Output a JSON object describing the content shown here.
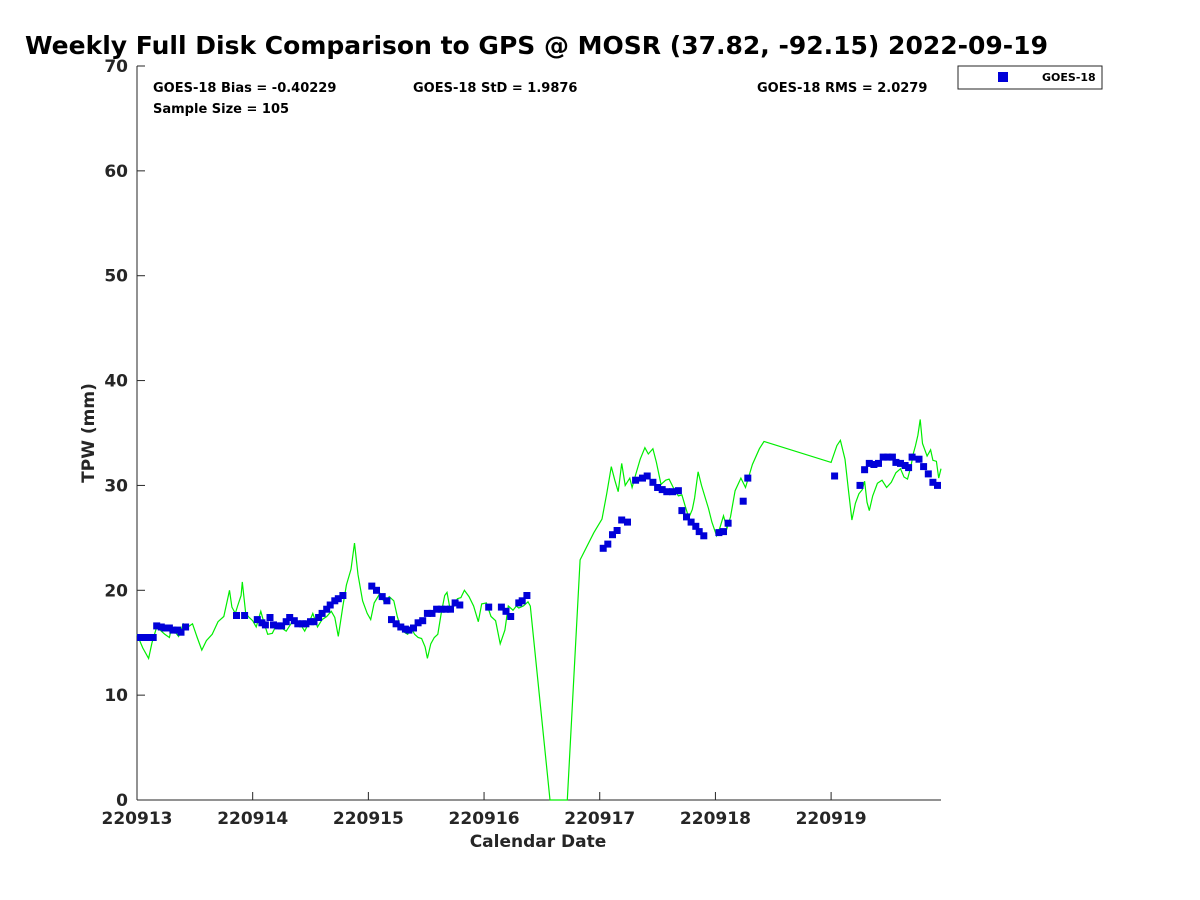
{
  "chart_data": {
    "type": "scatter",
    "title": "Weekly Full Disk Comparison to GPS @ MOSR (37.82, -92.15) 2022-09-19",
    "xlabel": "Calendar Date",
    "ylabel": "TPW (mm)",
    "xlim": [
      0,
      6.95
    ],
    "ylim": [
      0,
      70
    ],
    "x_tick_values": [
      0,
      1,
      2,
      3,
      4,
      5,
      6
    ],
    "x_tick_labels": [
      "220913",
      "220914",
      "220915",
      "220916",
      "220917",
      "220918",
      "220919"
    ],
    "y_tick_values": [
      0,
      10,
      20,
      30,
      40,
      50,
      60,
      70
    ],
    "y_tick_labels": [
      "0",
      "10",
      "20",
      "30",
      "40",
      "50",
      "60",
      "70"
    ],
    "grid": false,
    "legend_placement": "top-right",
    "stats": {
      "bias": "GOES-18 Bias = -0.40229",
      "std": "GOES-18 StD = 1.9876",
      "rms": "GOES-18 RMS = 2.0279",
      "sample_size": "Sample Size = 105"
    },
    "series": [
      {
        "name": "GOES-18",
        "kind": "scatter",
        "color": "#0000d8",
        "marker": "square",
        "points": [
          [
            0.03,
            15.5
          ],
          [
            0.07,
            15.5
          ],
          [
            0.1,
            15.5
          ],
          [
            0.14,
            15.5
          ],
          [
            0.17,
            16.6
          ],
          [
            0.21,
            16.5
          ],
          [
            0.24,
            16.4
          ],
          [
            0.28,
            16.4
          ],
          [
            0.31,
            16.2
          ],
          [
            0.35,
            16.2
          ],
          [
            0.38,
            16.0
          ],
          [
            0.42,
            16.5
          ],
          [
            0.86,
            17.6
          ],
          [
            0.93,
            17.6
          ],
          [
            1.04,
            17.2
          ],
          [
            1.08,
            16.9
          ],
          [
            1.11,
            16.7
          ],
          [
            1.15,
            17.4
          ],
          [
            1.18,
            16.7
          ],
          [
            1.22,
            16.6
          ],
          [
            1.25,
            16.6
          ],
          [
            1.29,
            17.0
          ],
          [
            1.32,
            17.4
          ],
          [
            1.36,
            17.1
          ],
          [
            1.39,
            16.8
          ],
          [
            1.43,
            16.8
          ],
          [
            1.46,
            16.8
          ],
          [
            1.5,
            17.0
          ],
          [
            1.53,
            17.0
          ],
          [
            1.57,
            17.4
          ],
          [
            1.6,
            17.8
          ],
          [
            1.64,
            18.2
          ],
          [
            1.67,
            18.6
          ],
          [
            1.71,
            19.0
          ],
          [
            1.74,
            19.2
          ],
          [
            1.78,
            19.5
          ],
          [
            2.03,
            20.4
          ],
          [
            2.07,
            20.0
          ],
          [
            2.12,
            19.4
          ],
          [
            2.16,
            19.0
          ],
          [
            2.2,
            17.2
          ],
          [
            2.24,
            16.8
          ],
          [
            2.28,
            16.5
          ],
          [
            2.32,
            16.3
          ],
          [
            2.35,
            16.2
          ],
          [
            2.39,
            16.4
          ],
          [
            2.43,
            16.9
          ],
          [
            2.47,
            17.1
          ],
          [
            2.51,
            17.8
          ],
          [
            2.55,
            17.8
          ],
          [
            2.59,
            18.2
          ],
          [
            2.63,
            18.2
          ],
          [
            2.67,
            18.2
          ],
          [
            2.71,
            18.2
          ],
          [
            2.75,
            18.8
          ],
          [
            2.79,
            18.6
          ],
          [
            3.04,
            18.4
          ],
          [
            3.15,
            18.4
          ],
          [
            3.19,
            18.0
          ],
          [
            3.23,
            17.5
          ],
          [
            3.3,
            18.8
          ],
          [
            3.33,
            19.0
          ],
          [
            3.37,
            19.5
          ],
          [
            4.03,
            24.0
          ],
          [
            4.07,
            24.4
          ],
          [
            4.11,
            25.3
          ],
          [
            4.15,
            25.7
          ],
          [
            4.19,
            26.7
          ],
          [
            4.24,
            26.5
          ],
          [
            4.31,
            30.5
          ],
          [
            4.37,
            30.7
          ],
          [
            4.41,
            30.9
          ],
          [
            4.46,
            30.3
          ],
          [
            4.5,
            29.8
          ],
          [
            4.54,
            29.6
          ],
          [
            4.58,
            29.4
          ],
          [
            4.63,
            29.4
          ],
          [
            4.68,
            29.5
          ],
          [
            4.71,
            27.6
          ],
          [
            4.75,
            27.0
          ],
          [
            4.79,
            26.5
          ],
          [
            4.83,
            26.1
          ],
          [
            4.86,
            25.6
          ],
          [
            4.9,
            25.2
          ],
          [
            5.03,
            25.5
          ],
          [
            5.07,
            25.6
          ],
          [
            5.11,
            26.4
          ],
          [
            5.24,
            28.5
          ],
          [
            5.28,
            30.7
          ],
          [
            6.03,
            30.9
          ],
          [
            6.25,
            30.0
          ],
          [
            6.29,
            31.5
          ],
          [
            6.33,
            32.1
          ],
          [
            6.37,
            32.0
          ],
          [
            6.41,
            32.1
          ],
          [
            6.45,
            32.7
          ],
          [
            6.49,
            32.7
          ],
          [
            6.53,
            32.7
          ],
          [
            6.56,
            32.2
          ],
          [
            6.6,
            32.1
          ],
          [
            6.64,
            31.9
          ],
          [
            6.67,
            31.7
          ],
          [
            6.7,
            32.7
          ],
          [
            6.76,
            32.5
          ],
          [
            6.8,
            31.8
          ],
          [
            6.84,
            31.1
          ],
          [
            6.88,
            30.3
          ],
          [
            6.92,
            30.0
          ]
        ]
      },
      {
        "name": "",
        "kind": "line",
        "color": "#00ee00",
        "points": [
          [
            0.0,
            15.8
          ],
          [
            0.05,
            14.5
          ],
          [
            0.1,
            13.5
          ],
          [
            0.13,
            15.0
          ],
          [
            0.17,
            16.5
          ],
          [
            0.2,
            16.2
          ],
          [
            0.24,
            15.8
          ],
          [
            0.28,
            15.5
          ],
          [
            0.3,
            16.5
          ],
          [
            0.33,
            16.0
          ],
          [
            0.36,
            15.6
          ],
          [
            0.4,
            16.8
          ],
          [
            0.44,
            16.5
          ],
          [
            0.48,
            16.8
          ],
          [
            0.52,
            15.5
          ],
          [
            0.56,
            14.3
          ],
          [
            0.6,
            15.2
          ],
          [
            0.65,
            15.8
          ],
          [
            0.7,
            17.0
          ],
          [
            0.75,
            17.5
          ],
          [
            0.79,
            19.5
          ],
          [
            0.8,
            20.0
          ],
          [
            0.82,
            18.4
          ],
          [
            0.85,
            17.8
          ],
          [
            0.87,
            18.5
          ],
          [
            0.9,
            19.5
          ],
          [
            0.91,
            20.8
          ],
          [
            0.94,
            17.8
          ],
          [
            0.97,
            17.4
          ],
          [
            1.0,
            17.1
          ],
          [
            1.03,
            16.5
          ],
          [
            1.07,
            18.0
          ],
          [
            1.1,
            16.8
          ],
          [
            1.13,
            15.8
          ],
          [
            1.17,
            15.9
          ],
          [
            1.21,
            16.8
          ],
          [
            1.25,
            16.4
          ],
          [
            1.29,
            16.1
          ],
          [
            1.33,
            16.8
          ],
          [
            1.37,
            17.3
          ],
          [
            1.41,
            16.8
          ],
          [
            1.45,
            16.1
          ],
          [
            1.49,
            17.0
          ],
          [
            1.52,
            17.8
          ],
          [
            1.56,
            16.5
          ],
          [
            1.6,
            17.2
          ],
          [
            1.64,
            17.5
          ],
          [
            1.68,
            18.0
          ],
          [
            1.71,
            17.4
          ],
          [
            1.74,
            15.6
          ],
          [
            1.78,
            18.5
          ],
          [
            1.81,
            20.5
          ],
          [
            1.85,
            22.0
          ],
          [
            1.88,
            24.5
          ],
          [
            1.91,
            21.5
          ],
          [
            1.95,
            19.0
          ],
          [
            1.99,
            17.8
          ],
          [
            2.02,
            17.2
          ],
          [
            2.05,
            18.8
          ],
          [
            2.1,
            19.7
          ],
          [
            2.14,
            18.8
          ],
          [
            2.18,
            19.4
          ],
          [
            2.22,
            19.0
          ],
          [
            2.25,
            17.5
          ],
          [
            2.28,
            16.4
          ],
          [
            2.31,
            16.0
          ],
          [
            2.34,
            15.8
          ],
          [
            2.37,
            16.4
          ],
          [
            2.4,
            15.8
          ],
          [
            2.43,
            15.5
          ],
          [
            2.46,
            15.4
          ],
          [
            2.49,
            14.6
          ],
          [
            2.51,
            13.5
          ],
          [
            2.54,
            14.9
          ],
          [
            2.57,
            15.5
          ],
          [
            2.6,
            15.8
          ],
          [
            2.63,
            17.8
          ],
          [
            2.66,
            19.5
          ],
          [
            2.68,
            19.8
          ],
          [
            2.71,
            18.0
          ],
          [
            2.74,
            18.5
          ],
          [
            2.77,
            19.2
          ],
          [
            2.8,
            19.3
          ],
          [
            2.83,
            20.0
          ],
          [
            2.87,
            19.4
          ],
          [
            2.91,
            18.5
          ],
          [
            2.95,
            17.0
          ],
          [
            2.98,
            18.7
          ],
          [
            3.02,
            18.8
          ],
          [
            3.06,
            17.5
          ],
          [
            3.1,
            17.1
          ],
          [
            3.14,
            14.9
          ],
          [
            3.18,
            16.2
          ],
          [
            3.21,
            18.5
          ],
          [
            3.25,
            18.1
          ],
          [
            3.28,
            18.5
          ],
          [
            3.3,
            18.3
          ],
          [
            3.34,
            18.5
          ],
          [
            3.38,
            18.9
          ],
          [
            3.4,
            18.5
          ],
          [
            3.57,
            0
          ],
          [
            3.72,
            0
          ],
          [
            3.83,
            22.9
          ],
          [
            3.95,
            25.5
          ],
          [
            4.02,
            26.8
          ],
          [
            4.06,
            29.2
          ],
          [
            4.1,
            31.8
          ],
          [
            4.13,
            30.5
          ],
          [
            4.16,
            29.4
          ],
          [
            4.19,
            32.1
          ],
          [
            4.22,
            30.0
          ],
          [
            4.26,
            30.7
          ],
          [
            4.28,
            29.8
          ],
          [
            4.31,
            31.0
          ],
          [
            4.35,
            32.5
          ],
          [
            4.39,
            33.6
          ],
          [
            4.42,
            33.0
          ],
          [
            4.46,
            33.5
          ],
          [
            4.49,
            32.2
          ],
          [
            4.53,
            30.1
          ],
          [
            4.57,
            30.5
          ],
          [
            4.6,
            30.6
          ],
          [
            4.64,
            29.7
          ],
          [
            4.68,
            29.0
          ],
          [
            4.71,
            29.1
          ],
          [
            4.74,
            28.0
          ],
          [
            4.77,
            26.9
          ],
          [
            4.8,
            27.7
          ],
          [
            4.82,
            28.8
          ],
          [
            4.85,
            31.3
          ],
          [
            4.88,
            30.0
          ],
          [
            4.91,
            28.9
          ],
          [
            4.94,
            27.8
          ],
          [
            4.97,
            26.5
          ],
          [
            5.01,
            25.2
          ],
          [
            5.04,
            26.0
          ],
          [
            5.07,
            27.1
          ],
          [
            5.1,
            25.9
          ],
          [
            5.13,
            27.0
          ],
          [
            5.17,
            29.5
          ],
          [
            5.22,
            30.7
          ],
          [
            5.26,
            29.8
          ],
          [
            5.32,
            32.0
          ],
          [
            5.38,
            33.5
          ],
          [
            5.42,
            34.2
          ],
          [
            6.0,
            32.2
          ],
          [
            6.05,
            33.8
          ],
          [
            6.08,
            34.3
          ],
          [
            6.12,
            32.5
          ],
          [
            6.15,
            29.5
          ],
          [
            6.18,
            26.7
          ],
          [
            6.21,
            28.3
          ],
          [
            6.24,
            29.2
          ],
          [
            6.27,
            29.6
          ],
          [
            6.29,
            30.4
          ],
          [
            6.31,
            28.4
          ],
          [
            6.33,
            27.6
          ],
          [
            6.36,
            29.0
          ],
          [
            6.4,
            30.2
          ],
          [
            6.44,
            30.5
          ],
          [
            6.48,
            29.8
          ],
          [
            6.52,
            30.3
          ],
          [
            6.56,
            31.2
          ],
          [
            6.6,
            31.6
          ],
          [
            6.63,
            30.8
          ],
          [
            6.66,
            30.6
          ],
          [
            6.69,
            31.8
          ],
          [
            6.71,
            33.0
          ],
          [
            6.73,
            33.8
          ],
          [
            6.75,
            34.8
          ],
          [
            6.77,
            36.3
          ],
          [
            6.79,
            34.0
          ],
          [
            6.83,
            32.8
          ],
          [
            6.86,
            33.4
          ],
          [
            6.88,
            32.4
          ],
          [
            6.91,
            32.3
          ],
          [
            6.93,
            30.7
          ],
          [
            6.95,
            31.6
          ]
        ]
      }
    ]
  }
}
